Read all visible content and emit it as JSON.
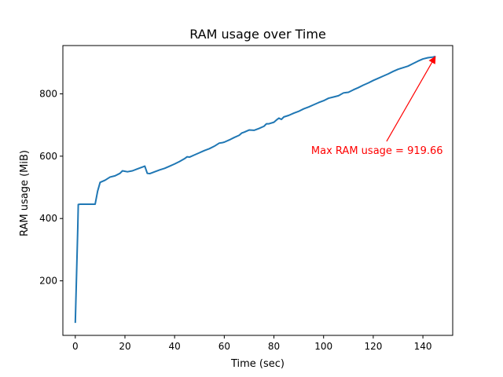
{
  "chart_data": {
    "type": "line",
    "title": "RAM usage over Time",
    "xlabel": "Time (sec)",
    "ylabel": "RAM usage (MiB)",
    "xlim": [
      -5,
      152
    ],
    "ylim": [
      25,
      955
    ],
    "xticks": [
      0,
      20,
      40,
      60,
      80,
      100,
      120,
      140
    ],
    "yticks": [
      200,
      400,
      600,
      800
    ],
    "grid": false,
    "series": [
      {
        "color": "#1f77b4",
        "x": [
          0,
          1,
          1.2,
          2,
          3,
          5,
          7,
          8,
          9,
          10,
          12,
          14,
          16,
          18,
          19,
          21,
          23,
          25,
          28,
          29,
          30,
          32,
          34,
          36,
          38,
          40,
          42,
          44,
          45,
          46,
          48,
          50,
          52,
          54,
          56,
          58,
          59,
          60,
          62,
          64,
          66,
          67,
          68,
          70,
          72,
          74,
          76,
          77,
          78,
          80,
          81,
          82,
          83,
          84,
          86,
          88,
          90,
          92,
          94,
          96,
          98,
          100,
          102,
          104,
          106,
          108,
          109,
          110,
          112,
          114,
          116,
          118,
          120,
          122,
          124,
          126,
          128,
          130,
          132,
          134,
          136,
          138,
          140,
          142,
          144,
          145
        ],
        "y": [
          65,
          370,
          445,
          446,
          446,
          446,
          446,
          446,
          488,
          516,
          523,
          533,
          537,
          545,
          553,
          550,
          553,
          559,
          568,
          545,
          544,
          550,
          556,
          561,
          568,
          575,
          583,
          592,
          598,
          597,
          604,
          611,
          618,
          624,
          632,
          642,
          643,
          645,
          652,
          660,
          667,
          674,
          677,
          684,
          683,
          689,
          696,
          704,
          704,
          709,
          716,
          722,
          718,
          726,
          731,
          738,
          744,
          752,
          758,
          765,
          772,
          778,
          786,
          790,
          794,
          803,
          804,
          805,
          813,
          820,
          828,
          835,
          843,
          850,
          857,
          864,
          872,
          879,
          884,
          889,
          897,
          905,
          912,
          916,
          918,
          920
        ]
      }
    ],
    "annotations": [
      {
        "text": "Max RAM usage = 919.66",
        "color": "#ff0000",
        "xy": [
          145,
          919.66
        ],
        "xytext": [
          95,
          620
        ]
      }
    ]
  }
}
